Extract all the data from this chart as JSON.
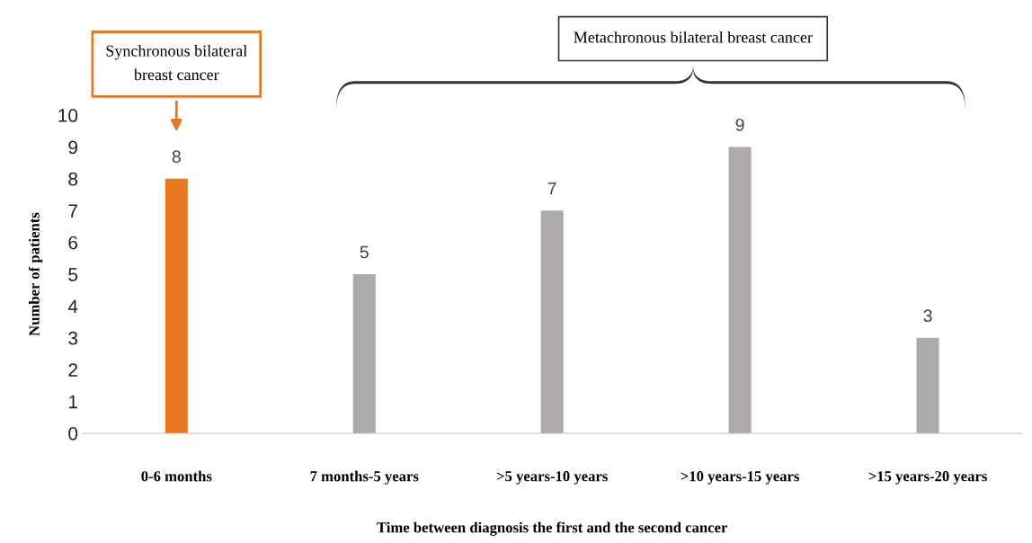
{
  "chart_data": {
    "type": "bar",
    "xlabel": "Time between diagnosis the first and the second cancer",
    "ylabel": "Number of patients",
    "categories": [
      "0-6 months",
      "7 months-5 years",
      ">5 years-10 years",
      ">10 years-15 years",
      ">15 years-20 years"
    ],
    "values": [
      8,
      5,
      7,
      9,
      3
    ],
    "colors": [
      "#e87722",
      "#aeaaaa",
      "#aeaaaa",
      "#aeaaaa",
      "#aeaaaa"
    ],
    "ylim": [
      0,
      10
    ],
    "yticks": [
      0,
      1,
      2,
      3,
      4,
      5,
      6,
      7,
      8,
      9,
      10
    ],
    "grid": false,
    "legend": false,
    "data_labels": true,
    "annotations": [
      "Synchronous bilateral breast cancer",
      "Metachronous bilateral breast cancer"
    ]
  }
}
